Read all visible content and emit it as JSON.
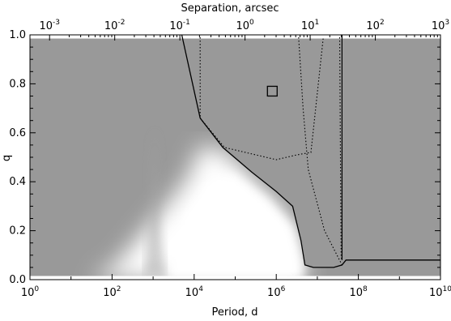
{
  "chart_data": {
    "type": "area",
    "xlabel": "Period, d",
    "ylabel": "q",
    "top_axis_label": "Separation, arcsec",
    "x_scale": "log",
    "xlim": [
      1,
      10000000000
    ],
    "ylim": [
      0,
      1
    ],
    "top_axis_range_arcsec": [
      0.0005,
      1000
    ],
    "x_tick_labels": [
      {
        "value": 1,
        "base": "10",
        "exp": "0"
      },
      {
        "value": 100,
        "base": "10",
        "exp": "2"
      },
      {
        "value": 10000,
        "base": "10",
        "exp": "4"
      },
      {
        "value": 1000000,
        "base": "10",
        "exp": "6"
      },
      {
        "value": 100000000,
        "base": "10",
        "exp": "8"
      },
      {
        "value": 10000000000,
        "base": "10",
        "exp": "10"
      }
    ],
    "top_tick_labels": [
      {
        "value": 0.001,
        "base": "10",
        "exp": "-3"
      },
      {
        "value": 0.01,
        "base": "10",
        "exp": "-2"
      },
      {
        "value": 0.1,
        "base": "10",
        "exp": "-1"
      },
      {
        "value": 1,
        "base": "10",
        "exp": "0"
      },
      {
        "value": 10,
        "base": "10",
        "exp": "1"
      },
      {
        "value": 100,
        "base": "10",
        "exp": "2"
      },
      {
        "value": 1000,
        "base": "10",
        "exp": "3"
      }
    ],
    "y_tick_labels": [
      "0.0",
      "0.2",
      "0.4",
      "0.6",
      "0.8",
      "1.0"
    ],
    "y_ticks": [
      0,
      0.2,
      0.4,
      0.6,
      0.8,
      1.0
    ],
    "excluded_region_boundary": [
      [
        5000,
        1.0
      ],
      [
        14000,
        0.66
      ],
      [
        50000,
        0.54
      ],
      [
        250000,
        0.44
      ],
      [
        1000000,
        0.36
      ],
      [
        2500000,
        0.3
      ],
      [
        4000000,
        0.16
      ],
      [
        5000000,
        0.06
      ],
      [
        8000000,
        0.05
      ],
      [
        25000000,
        0.05
      ],
      [
        40000000,
        0.06
      ],
      [
        50000000,
        0.08
      ],
      [
        10000000000,
        0.08
      ]
    ],
    "detection_limits": [
      {
        "name": "solid-vertical",
        "points": [
          [
            40000000,
            0.08
          ],
          [
            40000000,
            1.0
          ]
        ]
      },
      {
        "name": "dotted-1",
        "points": [
          [
            14000,
            0.99
          ],
          [
            14000,
            0.66
          ],
          [
            55000,
            0.54
          ],
          [
            1000000,
            0.49
          ],
          [
            3200000,
            0.51
          ],
          [
            7000000,
            0.52
          ],
          [
            14000000,
            0.99
          ]
        ]
      },
      {
        "name": "dotted-2",
        "points": [
          [
            3500000,
            0.99
          ],
          [
            4500000,
            0.7
          ],
          [
            6000000,
            0.45
          ],
          [
            15000000,
            0.2
          ],
          [
            40000000,
            0.06
          ]
        ]
      },
      {
        "name": "dotted-3",
        "points": [
          [
            35000000,
            0.99
          ],
          [
            38000000,
            0.1
          ],
          [
            39000000,
            0.08
          ]
        ]
      }
    ],
    "companion_marker": {
      "x": 800000,
      "y": 0.77,
      "shape": "square"
    },
    "colors": {
      "background_fill": "#999999",
      "boundary_line": "#000000"
    }
  }
}
